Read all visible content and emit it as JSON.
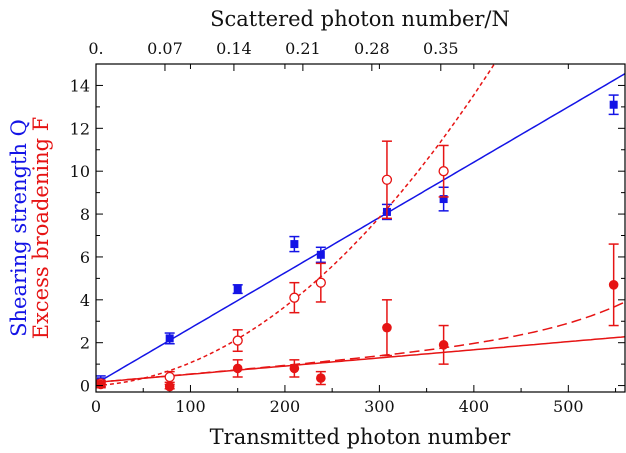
{
  "chart_data": {
    "type": "scatter",
    "xlabel": "Transmitted photon number",
    "x2label": "Scattered photon number/N",
    "ylabel_parts": [
      {
        "text": "Shearing strength Q",
        "color": "#1414e6"
      },
      {
        "text": "Excess broadening F",
        "color": "#e61414"
      }
    ],
    "xlim": [
      0,
      560
    ],
    "ylim": [
      -0.3,
      15
    ],
    "x_ticks": [
      "0",
      "100",
      "200",
      "300",
      "400",
      "500"
    ],
    "x_tick_values": [
      0,
      100,
      200,
      300,
      400,
      500
    ],
    "y_ticks": [
      "0",
      "2",
      "4",
      "6",
      "8",
      "10",
      "12",
      "14"
    ],
    "y_tick_values": [
      0,
      2,
      4,
      6,
      8,
      10,
      12,
      14
    ],
    "x2_ticks": [
      "0.",
      "0.07",
      "0.14",
      "0.21",
      "0.28",
      "0.35"
    ],
    "x2_tick_positions": [
      0,
      73,
      146,
      219,
      292,
      365
    ],
    "series": [
      {
        "marker": "square",
        "color": "#1414e6",
        "points": [
          {
            "x": 5,
            "y": 0.2,
            "err": 0.25
          },
          {
            "x": 78,
            "y": 2.2,
            "err": 0.25
          },
          {
            "x": 150,
            "y": 4.5,
            "err": 0.2
          },
          {
            "x": 210,
            "y": 6.6,
            "err": 0.35
          },
          {
            "x": 238,
            "y": 6.1,
            "err": 0.35
          },
          {
            "x": 308,
            "y": 8.1,
            "err": 0.35
          },
          {
            "x": 368,
            "y": 8.7,
            "err": 0.55
          },
          {
            "x": 548,
            "y": 13.1,
            "err": 0.45
          }
        ]
      },
      {
        "marker": "open-circle",
        "color": "#e61414",
        "points": [
          {
            "x": 5,
            "y": 0.1,
            "err": 0.15
          },
          {
            "x": 78,
            "y": 0.4,
            "err": 0.25
          },
          {
            "x": 150,
            "y": 2.1,
            "err": 0.5
          },
          {
            "x": 210,
            "y": 4.1,
            "err": 0.7
          },
          {
            "x": 238,
            "y": 4.8,
            "err": 0.9
          },
          {
            "x": 308,
            "y": 9.6,
            "err": 1.8
          },
          {
            "x": 368,
            "y": 10.0,
            "err": 1.2
          }
        ]
      },
      {
        "marker": "filled-circle",
        "color": "#e61414",
        "points": [
          {
            "x": 5,
            "y": 0.05,
            "err": 0.15
          },
          {
            "x": 78,
            "y": -0.05,
            "err": 0.1
          },
          {
            "x": 150,
            "y": 0.8,
            "err": 0.4
          },
          {
            "x": 210,
            "y": 0.8,
            "err": 0.4
          },
          {
            "x": 238,
            "y": 0.35,
            "err": 0.3
          },
          {
            "x": 308,
            "y": 2.7,
            "err": 1.3
          },
          {
            "x": 368,
            "y": 1.9,
            "err": 0.9
          },
          {
            "x": 548,
            "y": 4.7,
            "err": 1.9
          }
        ]
      }
    ],
    "fits": [
      {
        "style": "solid",
        "color": "#1414e6",
        "form": "linear",
        "slope": 0.0258,
        "intercept": 0.1
      },
      {
        "style": "solid",
        "color": "#e61414",
        "form": "linear",
        "slope": 0.0038,
        "intercept": 0.15
      },
      {
        "style": "dotted",
        "color": "#e61414",
        "form": "quadratic",
        "a": 7.75e-05,
        "b": 0.0029,
        "c": 0.0
      },
      {
        "style": "dashed",
        "color": "#e61414",
        "form": "exp-tail",
        "slope": 0.0038,
        "intercept": 0.15,
        "amp": 0.13,
        "x0": 320,
        "scale": 95
      }
    ]
  }
}
